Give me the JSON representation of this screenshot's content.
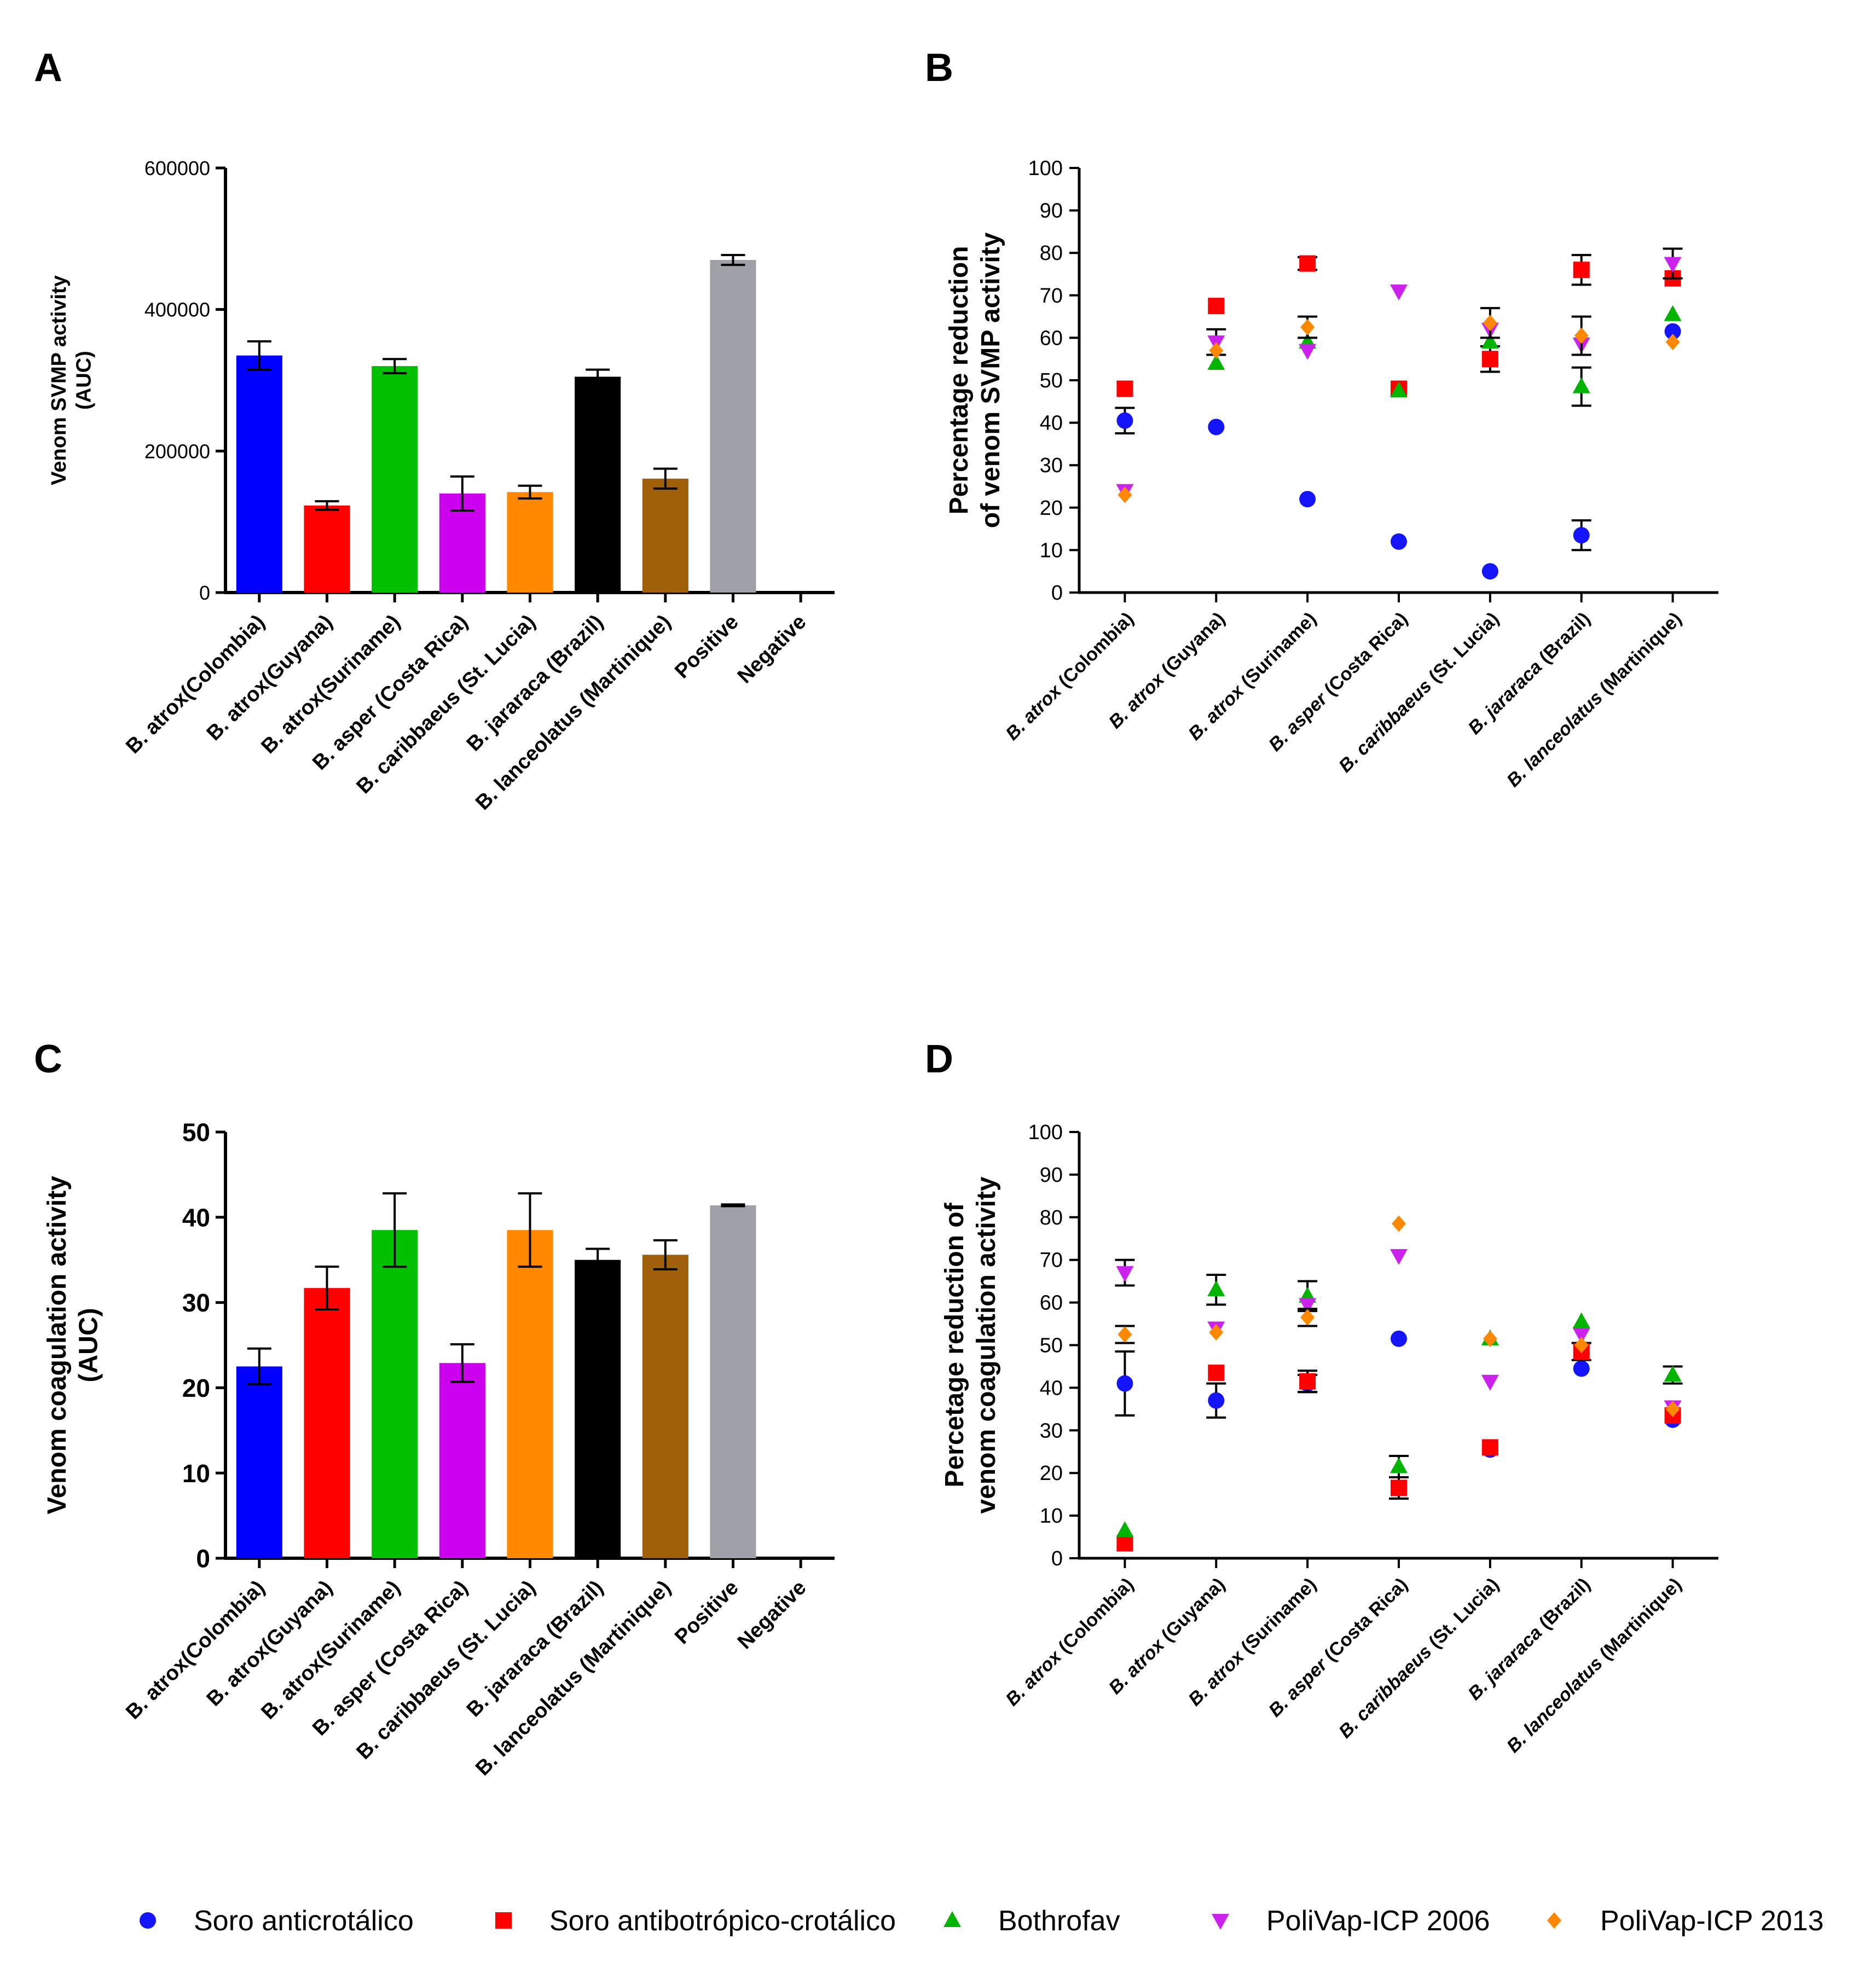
{
  "colors": {
    "axis": "#000000",
    "panel_A_bars": [
      "#0000ff",
      "#ff0000",
      "#00c000",
      "#cc00ee",
      "#ff8800",
      "#000000",
      "#a0600a",
      "#a0a0a8",
      "#ffffff"
    ],
    "series": [
      "#1414ff",
      "#ff0000",
      "#00b400",
      "#cc22ee",
      "#ff8800"
    ]
  },
  "legend": {
    "items": [
      {
        "label": "Soro anticrotálico",
        "marker": "circle"
      },
      {
        "label": "Soro antibotrópico-crotálico",
        "marker": "square"
      },
      {
        "label": "Bothrofav",
        "marker": "triangle-up"
      },
      {
        "label": "PoliVap-ICP 2006",
        "marker": "triangle-down"
      },
      {
        "label": "PoliVap-ICP 2013",
        "marker": "diamond"
      }
    ]
  },
  "chart_data": [
    {
      "panel": "A",
      "type": "bar",
      "ylabel": [
        "Venom SVMP activity",
        "(AUC)"
      ],
      "ylim": [
        0,
        600000
      ],
      "yticks": [
        0,
        200000,
        400000,
        600000
      ],
      "ytick_labels": [
        "0",
        "200000",
        "400000",
        "600000"
      ],
      "categories": [
        "B. atrox(Colombia)",
        "B. atrox(Guyana)",
        "B. atrox(Suriname)",
        "B. asper (Costa Rica)",
        "B. caribbaeus (St. Lucia)",
        "B. jararaca (Brazil)",
        "B. lanceolatus (Martinique)",
        "Positive",
        "Negative"
      ],
      "values": [
        335000,
        123000,
        320000,
        140000,
        142000,
        305000,
        161000,
        470000,
        0
      ],
      "errors": [
        20000,
        6000,
        10000,
        24000,
        9000,
        10000,
        14000,
        7000,
        0
      ]
    },
    {
      "panel": "B",
      "type": "scatter",
      "ylabel": [
        "Percentage reduction",
        "of venom SVMP activity"
      ],
      "ylim": [
        0,
        100
      ],
      "yticks": [
        0,
        10,
        20,
        30,
        40,
        50,
        60,
        70,
        80,
        90,
        100
      ],
      "ytick_labels": [
        "0",
        "10",
        "20",
        "30",
        "40",
        "50",
        "60",
        "70",
        "80",
        "90",
        "100"
      ],
      "categories": [
        {
          "genus": "B.",
          "species": "atrox",
          "place": "(Colombia)"
        },
        {
          "genus": "B.",
          "species": "atrox",
          "place": "(Guyana)"
        },
        {
          "genus": "B.",
          "species": "atrox",
          "place": "(Suriname)"
        },
        {
          "genus": "B.",
          "species": "asper",
          "place": "(Costa Rica)"
        },
        {
          "genus": "B.",
          "species": "caribbaeus",
          "place": "(St. Lucia)"
        },
        {
          "genus": "B.",
          "species": "jararaca",
          "place": "(Brazil)"
        },
        {
          "genus": "B.",
          "species": "lanceolatus",
          "place": "(Martinique)"
        }
      ],
      "series": [
        {
          "name": "Soro anticrotálico",
          "values": [
            40.5,
            39,
            22,
            12,
            5,
            13.5,
            61.5
          ],
          "errors": [
            3,
            0,
            0,
            0,
            0,
            3.5,
            0
          ]
        },
        {
          "name": "Soro antibotrópico-crotálico",
          "values": [
            48,
            67.5,
            77.5,
            48,
            55,
            76,
            74
          ],
          "errors": [
            0,
            0,
            1.5,
            0,
            3,
            3.5,
            0
          ]
        },
        {
          "name": "Bothrofav",
          "values": [
            null,
            54,
            59,
            47.5,
            59,
            48.5,
            65.5
          ],
          "errors": [
            0,
            0,
            0,
            0,
            0,
            4.5,
            0
          ]
        },
        {
          "name": "PoliVap-ICP 2006",
          "values": [
            24,
            59,
            57,
            71,
            62,
            58.5,
            77.5
          ],
          "errors": [
            0,
            3,
            0,
            0,
            0,
            0,
            3.5
          ]
        },
        {
          "name": "PoliVap-ICP 2013",
          "values": [
            23,
            57,
            62.5,
            null,
            63.5,
            60.5,
            59
          ],
          "errors": [
            0,
            0,
            2.5,
            0,
            3.5,
            4.5,
            0
          ]
        }
      ]
    },
    {
      "panel": "C",
      "type": "bar",
      "ylabel": [
        "Venom coagulation activity",
        "(AUC)"
      ],
      "ylim": [
        0,
        50
      ],
      "yticks": [
        0,
        10,
        20,
        30,
        40,
        50
      ],
      "ytick_labels": [
        "0",
        "10",
        "20",
        "30",
        "40",
        "50"
      ],
      "categories": [
        "B. atrox(Colombia)",
        "B. atrox(Guyana)",
        "B. atrox(Suriname)",
        "B. asper (Costa Rica)",
        "B. caribbaeus (St. Lucia)",
        "B. jararaca (Brazil)",
        "B. lanceolatus (Martinique)",
        "Positive",
        "Negative"
      ],
      "values": [
        22.5,
        31.7,
        38.5,
        22.9,
        38.5,
        35,
        35.6,
        41.4,
        0
      ],
      "errors": [
        2.1,
        2.5,
        4.3,
        2.2,
        4.3,
        1.3,
        1.7,
        0.1,
        0
      ]
    },
    {
      "panel": "D",
      "type": "scatter",
      "ylabel": [
        "Percetage reduction of",
        "venom coagulation activity"
      ],
      "ylim": [
        0,
        100
      ],
      "yticks": [
        0,
        10,
        20,
        30,
        40,
        50,
        60,
        70,
        80,
        90,
        100
      ],
      "ytick_labels": [
        "0",
        "10",
        "20",
        "30",
        "40",
        "50",
        "60",
        "70",
        "80",
        "90",
        "100"
      ],
      "categories": [
        {
          "genus": "B.",
          "species": "atrox",
          "place": "(Colombia)"
        },
        {
          "genus": "B.",
          "species": "atrox",
          "place": "(Guyana)"
        },
        {
          "genus": "B.",
          "species": "atrox",
          "place": "(Suriname)"
        },
        {
          "genus": "B.",
          "species": "asper",
          "place": "(Costa Rica)"
        },
        {
          "genus": "B.",
          "species": "caribbaeus",
          "place": "(St. Lucia)"
        },
        {
          "genus": "B.",
          "species": "jararaca",
          "place": "(Brazil)"
        },
        {
          "genus": "B.",
          "species": "lanceolatus",
          "place": "(Martinique)"
        }
      ],
      "series": [
        {
          "name": "Soro anticrotálico",
          "values": [
            41,
            37,
            41,
            51.5,
            25.5,
            44.5,
            32.5
          ],
          "errors": [
            7.5,
            4,
            2,
            0,
            0,
            0,
            0
          ]
        },
        {
          "name": "Soro antibotrópico-crotálico",
          "values": [
            3.5,
            43.5,
            41.5,
            16.5,
            26,
            48.5,
            33.5
          ],
          "errors": [
            0,
            0,
            2.5,
            2.5,
            0,
            2,
            0
          ]
        },
        {
          "name": "Bothrofav",
          "values": [
            6.5,
            63,
            61.5,
            21.5,
            51.5,
            55.5,
            43
          ],
          "errors": [
            0,
            3.5,
            3.5,
            2.5,
            0,
            0,
            2
          ]
        },
        {
          "name": "PoliVap-ICP 2006",
          "values": [
            67,
            54,
            59.5,
            71,
            41.5,
            52.5,
            35.5
          ],
          "errors": [
            3,
            0,
            0,
            0,
            0,
            0,
            0
          ]
        },
        {
          "name": "PoliVap-ICP 2013",
          "values": [
            52.5,
            53,
            56.5,
            78.5,
            51.5,
            50,
            35
          ],
          "errors": [
            2,
            0,
            2,
            0,
            0,
            0,
            0
          ]
        }
      ]
    }
  ],
  "panel_labels": [
    "A",
    "B",
    "C",
    "D"
  ]
}
